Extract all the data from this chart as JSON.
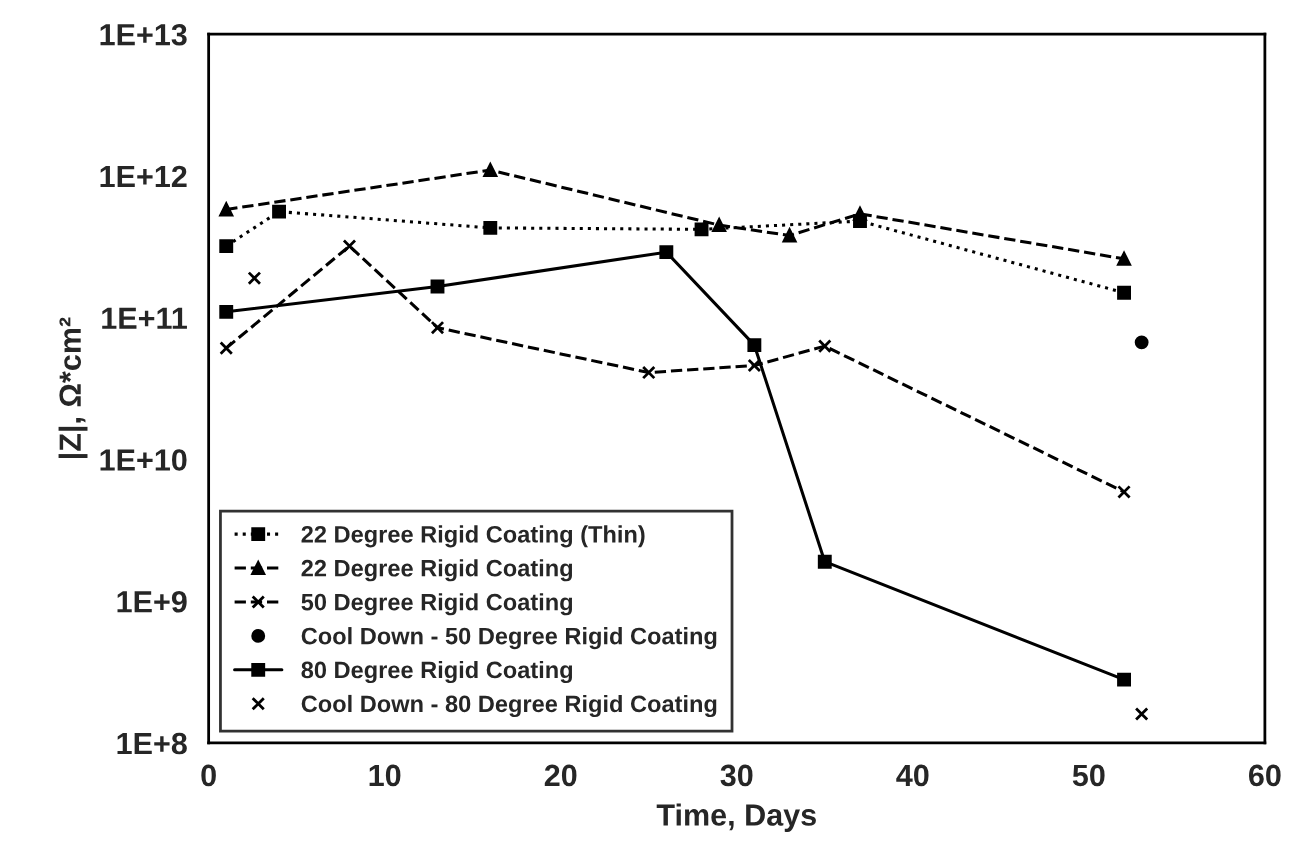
{
  "chart_data": {
    "type": "line",
    "xlabel": "Time, Days",
    "ylabel": "|Z|, Ω*cm²",
    "log": "y",
    "xlim": [
      0,
      60
    ],
    "xticks": [
      0,
      10,
      20,
      30,
      40,
      50,
      60
    ],
    "ylim": [
      100000000.0,
      10000000000000.0
    ],
    "yticks": [
      {
        "value": 100000000.0,
        "label": "1E+8"
      },
      {
        "value": 1000000000.0,
        "label": "1E+9"
      },
      {
        "value": 10000000000.0,
        "label": "1E+10"
      },
      {
        "value": 100000000000.0,
        "label": "1E+11"
      },
      {
        "value": 1000000000000.0,
        "label": "1E+12"
      },
      {
        "value": 10000000000000.0,
        "label": "1E+13"
      }
    ],
    "grid": false,
    "legend": "bottom left",
    "series": [
      {
        "name": "22 Degree Rigid Coating (Thin)",
        "color": "#000000",
        "marker": "square",
        "line_style": "dotted",
        "x": [
          1,
          4,
          16,
          28,
          37,
          52
        ],
        "values": [
          320000000000.0,
          560000000000.0,
          430000000000.0,
          420000000000.0,
          480000000000.0,
          150000000000.0
        ]
      },
      {
        "name": "22 Degree Rigid Coating",
        "color": "#000000",
        "marker": "triangle",
        "line_style": "dashed",
        "x": [
          1,
          16,
          29,
          33,
          37,
          52
        ],
        "values": [
          580000000000.0,
          1100000000000.0,
          450000000000.0,
          380000000000.0,
          540000000000.0,
          260000000000.0
        ]
      },
      {
        "name": "50 Degree Rigid Coating",
        "color": "#000000",
        "marker": "cross",
        "line_style": "dashed",
        "x": [
          1,
          8,
          13,
          25,
          31,
          35,
          52
        ],
        "values": [
          61000000000.0,
          320000000000.0,
          85000000000.0,
          41000000000.0,
          46000000000.0,
          63000000000.0,
          5900000000.0
        ]
      },
      {
        "name": "Cool Down - 50 Degree Rigid Coating",
        "type": "scatter",
        "color": "#000000",
        "marker": "circle",
        "x": [
          53
        ],
        "values": [
          67000000000.0
        ]
      },
      {
        "name": "80 Degree Rigid Coating",
        "color": "#000000",
        "marker": "square",
        "line_style": "solid",
        "x": [
          1,
          13,
          26,
          31,
          35,
          52
        ],
        "values": [
          110000000000.0,
          166000000000.0,
          290000000000.0,
          64000000000.0,
          1900000000.0,
          280000000.0
        ]
      },
      {
        "name": "Cool Down - 80 Degree Rigid Coating",
        "type": "scatter",
        "color": "#000000",
        "marker": "cross",
        "x": [
          2.6,
          53
        ],
        "values": [
          190000000000.0,
          160000000.0
        ]
      }
    ]
  }
}
